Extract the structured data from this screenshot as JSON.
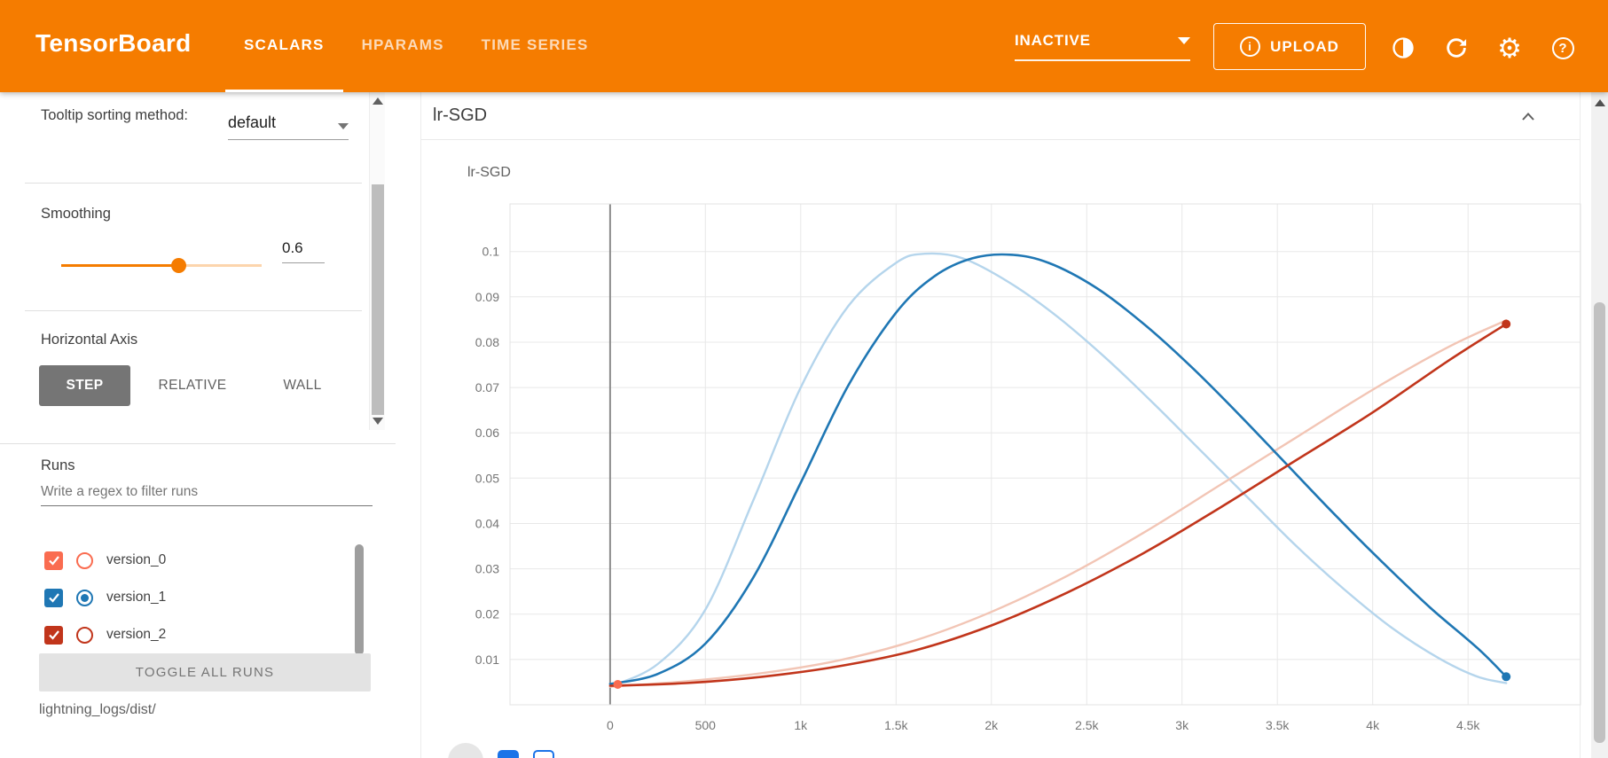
{
  "header": {
    "title": "TensorBoard",
    "tabs": [
      {
        "label": "SCALARS"
      },
      {
        "label": "HPARAMS"
      },
      {
        "label": "TIME SERIES"
      }
    ],
    "active_tab": "SCALARS",
    "status_label": "INACTIVE",
    "upload_label": "UPLOAD"
  },
  "icons": {
    "info_glyph": "i",
    "gear_glyph": "⚙",
    "help_glyph": "?"
  },
  "sidebar": {
    "tooltip_sorting_label": "Tooltip sorting method:",
    "tooltip_sorting_value": "default",
    "smoothing_label": "Smoothing",
    "smoothing_value": "0.6",
    "horizontal_axis_label": "Horizontal Axis",
    "axis_options": [
      {
        "label": "STEP"
      },
      {
        "label": "RELATIVE"
      },
      {
        "label": "WALL"
      }
    ],
    "active_axis": "STEP",
    "runs": {
      "label": "Runs",
      "filter_placeholder": "Write a regex to filter runs",
      "items": [
        {
          "name": "version_0",
          "color": "#fa6c50",
          "checked": true,
          "radio_selected": false
        },
        {
          "name": "version_1",
          "color": "#1f77b4",
          "checked": true,
          "radio_selected": true
        },
        {
          "name": "version_2",
          "color": "#c1351b",
          "checked": true,
          "radio_selected": false
        }
      ],
      "toggle_label": "TOGGLE ALL RUNS",
      "logdir": "lightning_logs/dist/"
    }
  },
  "main": {
    "group_title": "lr-SGD",
    "chart_title": "lr-SGD"
  },
  "chart_data": {
    "type": "line",
    "title": "lr-SGD",
    "xlabel": "",
    "ylabel": "",
    "xlim": [
      -525,
      5090
    ],
    "ylim": [
      0,
      0.1105
    ],
    "grid": true,
    "legend": "none",
    "smoothing": 0.6,
    "x_ticks": [
      {
        "v": 0,
        "label": "0"
      },
      {
        "v": 500,
        "label": "500"
      },
      {
        "v": 1000,
        "label": "1k"
      },
      {
        "v": 1500,
        "label": "1.5k"
      },
      {
        "v": 2000,
        "label": "2k"
      },
      {
        "v": 2500,
        "label": "2.5k"
      },
      {
        "v": 3000,
        "label": "3k"
      },
      {
        "v": 3500,
        "label": "3.5k"
      },
      {
        "v": 4000,
        "label": "4k"
      },
      {
        "v": 4500,
        "label": "4.5k"
      }
    ],
    "y_ticks": [
      {
        "v": 0.01,
        "label": "0.01"
      },
      {
        "v": 0.02,
        "label": "0.02"
      },
      {
        "v": 0.03,
        "label": "0.03"
      },
      {
        "v": 0.04,
        "label": "0.04"
      },
      {
        "v": 0.05,
        "label": "0.05"
      },
      {
        "v": 0.06,
        "label": "0.06"
      },
      {
        "v": 0.07,
        "label": "0.07"
      },
      {
        "v": 0.08,
        "label": "0.08"
      },
      {
        "v": 0.09,
        "label": "0.09"
      },
      {
        "v": 0.1,
        "label": "0.1"
      }
    ],
    "series": [
      {
        "name": "version_1 (unsmoothed)",
        "color": "#b5d5ec",
        "width": 2.4,
        "end_dot": false,
        "points": [
          [
            0,
            0.004
          ],
          [
            250,
            0.009
          ],
          [
            500,
            0.021
          ],
          [
            750,
            0.045
          ],
          [
            1000,
            0.07
          ],
          [
            1250,
            0.088
          ],
          [
            1500,
            0.0975
          ],
          [
            1650,
            0.0995
          ],
          [
            1850,
            0.0985
          ],
          [
            2100,
            0.093
          ],
          [
            2350,
            0.0855
          ],
          [
            2600,
            0.0765
          ],
          [
            2850,
            0.0665
          ],
          [
            3100,
            0.056
          ],
          [
            3350,
            0.0455
          ],
          [
            3600,
            0.035
          ],
          [
            3850,
            0.0255
          ],
          [
            4100,
            0.017
          ],
          [
            4350,
            0.0102
          ],
          [
            4550,
            0.0062
          ],
          [
            4700,
            0.0048
          ]
        ]
      },
      {
        "name": "version_2 (unsmoothed)",
        "color": "#f2c5b5",
        "width": 2.4,
        "end_dot": false,
        "points": [
          [
            0,
            0.004
          ],
          [
            400,
            0.0052
          ],
          [
            800,
            0.007
          ],
          [
            1200,
            0.0098
          ],
          [
            1600,
            0.0142
          ],
          [
            2000,
            0.0205
          ],
          [
            2400,
            0.0285
          ],
          [
            2800,
            0.038
          ],
          [
            3200,
            0.0485
          ],
          [
            3600,
            0.059
          ],
          [
            4000,
            0.0695
          ],
          [
            4400,
            0.079
          ],
          [
            4700,
            0.0848
          ]
        ]
      },
      {
        "name": "version_1",
        "color": "#1f77b4",
        "width": 2.6,
        "end_dot": true,
        "points": [
          [
            0,
            0.0046
          ],
          [
            250,
            0.0068
          ],
          [
            500,
            0.0135
          ],
          [
            750,
            0.028
          ],
          [
            1000,
            0.049
          ],
          [
            1250,
            0.0705
          ],
          [
            1500,
            0.0865
          ],
          [
            1700,
            0.0945
          ],
          [
            1900,
            0.0985
          ],
          [
            2100,
            0.0993
          ],
          [
            2300,
            0.0975
          ],
          [
            2550,
            0.092
          ],
          [
            2800,
            0.084
          ],
          [
            3050,
            0.0745
          ],
          [
            3300,
            0.064
          ],
          [
            3550,
            0.053
          ],
          [
            3800,
            0.042
          ],
          [
            4050,
            0.0315
          ],
          [
            4300,
            0.0215
          ],
          [
            4550,
            0.0125
          ],
          [
            4700,
            0.0062
          ]
        ]
      },
      {
        "name": "version_2",
        "color": "#c1351b",
        "width": 2.6,
        "end_dot": true,
        "points": [
          [
            0,
            0.0042
          ],
          [
            400,
            0.0048
          ],
          [
            800,
            0.0062
          ],
          [
            1200,
            0.0085
          ],
          [
            1600,
            0.012
          ],
          [
            2000,
            0.0175
          ],
          [
            2400,
            0.0248
          ],
          [
            2800,
            0.0335
          ],
          [
            3200,
            0.0435
          ],
          [
            3600,
            0.054
          ],
          [
            4000,
            0.0645
          ],
          [
            4400,
            0.076
          ],
          [
            4700,
            0.084
          ]
        ]
      },
      {
        "name": "version_0",
        "color": "#fa6c50",
        "width": 2.6,
        "end_dot": true,
        "points": [
          [
            40,
            0.0045
          ]
        ]
      }
    ]
  }
}
